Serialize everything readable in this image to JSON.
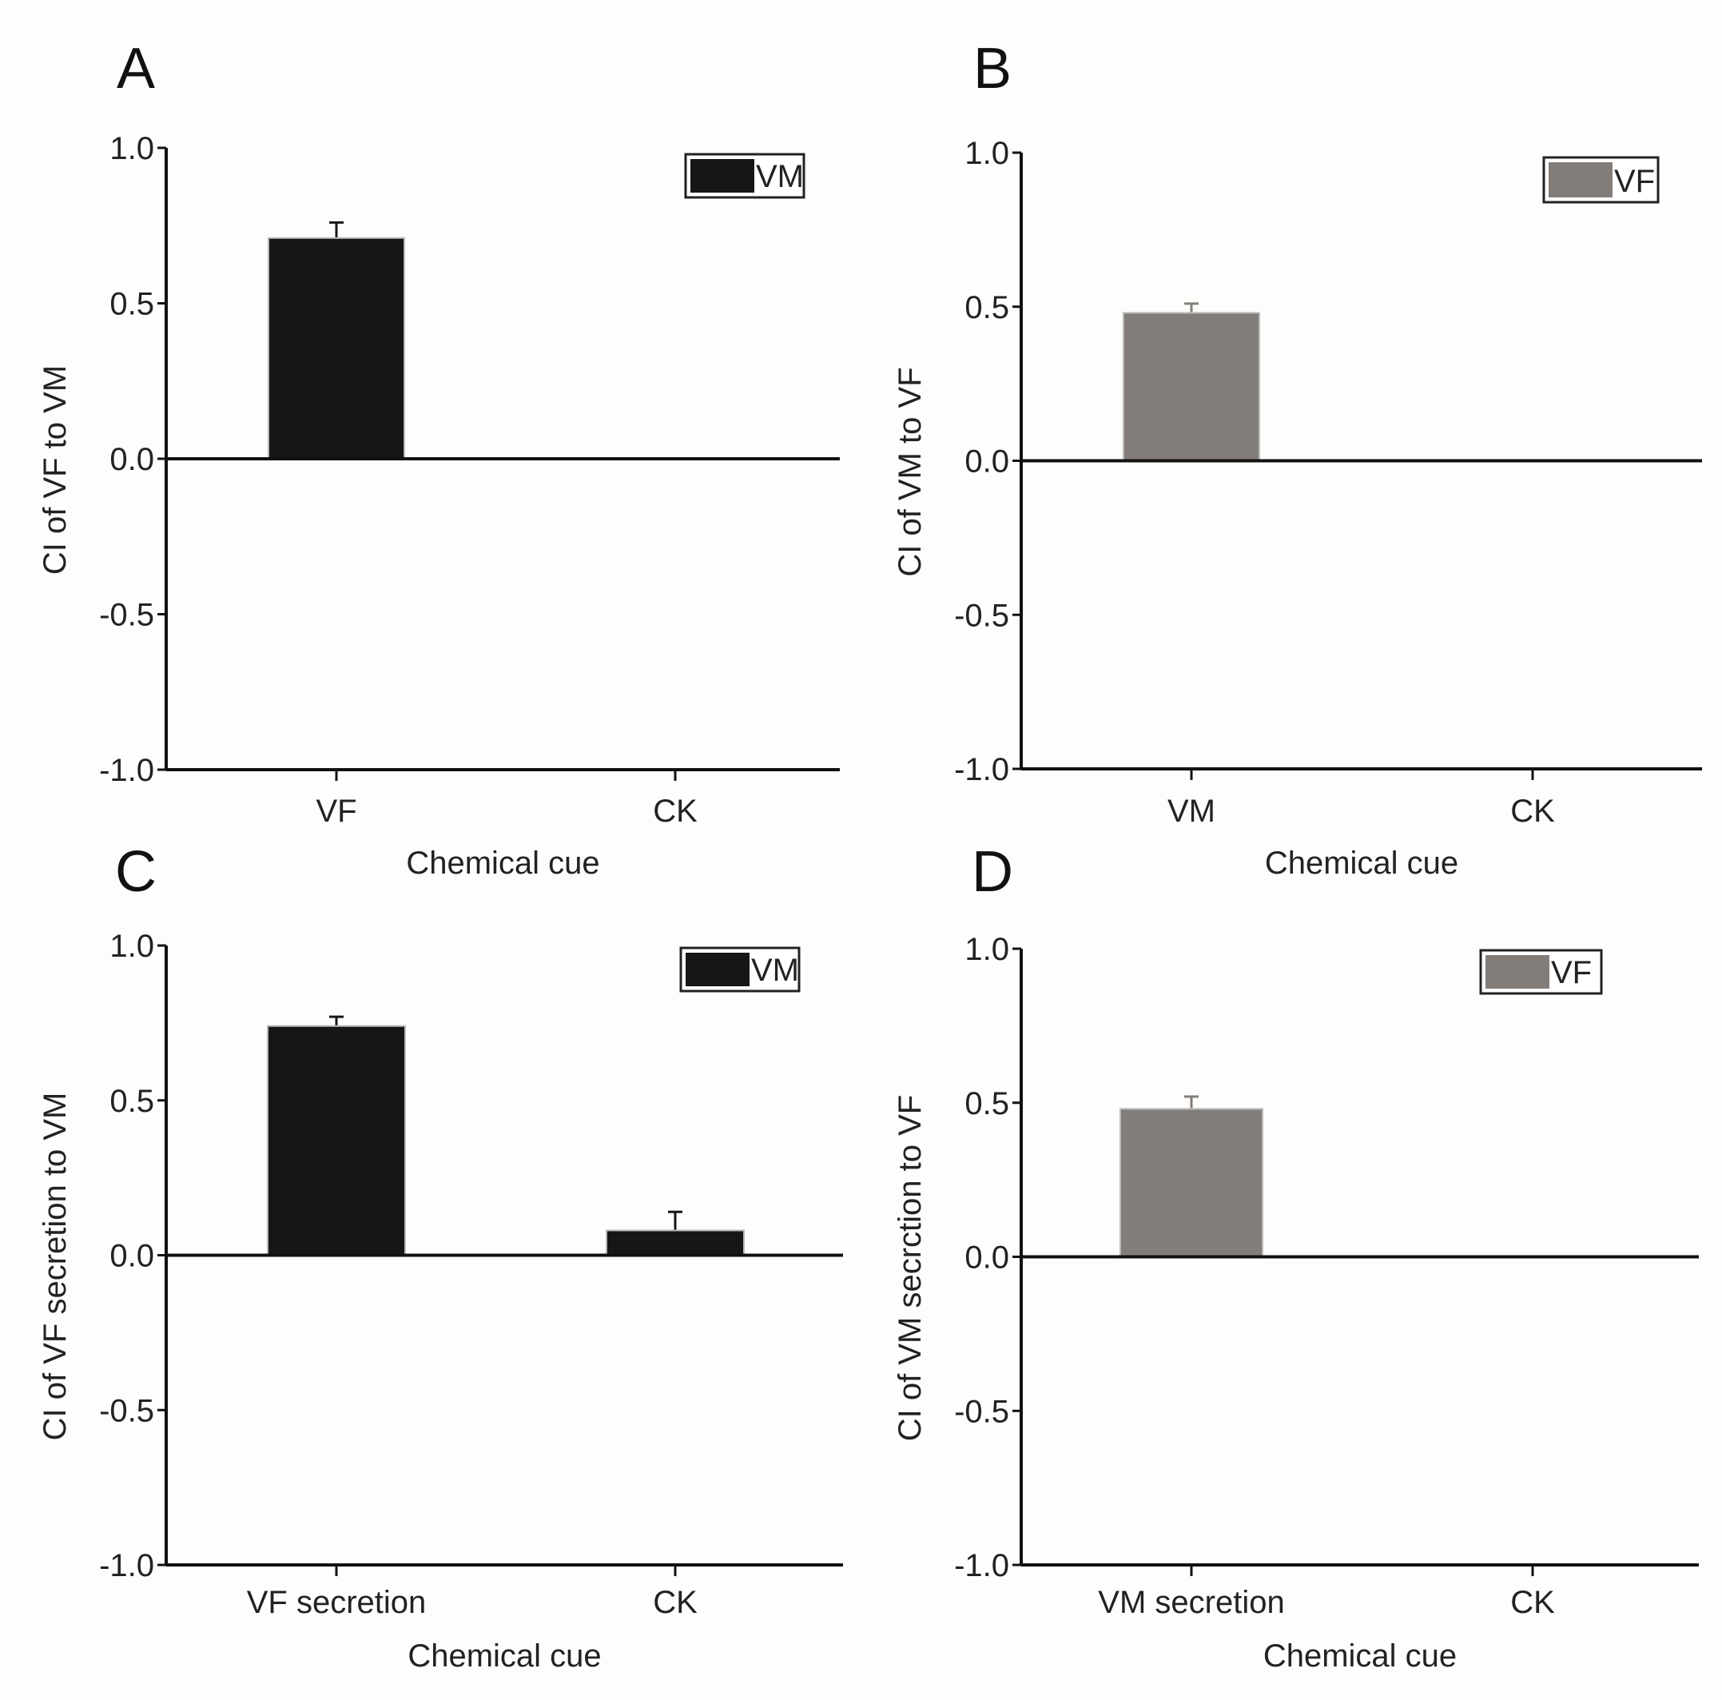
{
  "figure": {
    "colors": {
      "vm": "#161616",
      "vf": "#837d7a",
      "axis": "#111111"
    },
    "panels": [
      {
        "letter": "A",
        "chart_data": {
          "type": "bar",
          "categories": [
            "VF",
            "CK"
          ],
          "values": [
            0.71,
            0.0
          ],
          "errors": [
            0.05,
            0.0
          ],
          "ylabel": "CI of VF to VM",
          "xlabel": "Chemical cue",
          "ylim": [
            -1.0,
            1.0
          ],
          "yticks": [
            "1.0",
            "0.5",
            "0.0",
            "-0.5",
            "-1.0"
          ],
          "legend": {
            "label": "VM",
            "color": "#161616",
            "position": "top-right"
          }
        }
      },
      {
        "letter": "B",
        "chart_data": {
          "type": "bar",
          "categories": [
            "VM",
            "CK"
          ],
          "values": [
            0.48,
            0.0
          ],
          "errors": [
            0.03,
            0.0
          ],
          "ylabel": "CI of VM to VF",
          "xlabel": "Chemical cue",
          "ylim": [
            -1.0,
            1.0
          ],
          "yticks": [
            "1.0",
            "0.5",
            "0.0",
            "-0.5",
            "-1.0"
          ],
          "legend": {
            "label": "VF",
            "color": "#837d7a",
            "position": "top-right"
          }
        }
      },
      {
        "letter": "C",
        "chart_data": {
          "type": "bar",
          "categories": [
            "VF secretion",
            "CK"
          ],
          "values": [
            0.74,
            0.08
          ],
          "errors": [
            0.03,
            0.06
          ],
          "ylabel": "CI of VF secretion to VM",
          "xlabel": "Chemical cue",
          "ylim": [
            -1.0,
            1.0
          ],
          "yticks": [
            "1.0",
            "0.5",
            "0.0",
            "-0.5",
            "-1.0"
          ],
          "legend": {
            "label": "VM",
            "color": "#161616",
            "position": "top-right"
          }
        }
      },
      {
        "letter": "D",
        "chart_data": {
          "type": "bar",
          "categories": [
            "VM secretion",
            "CK"
          ],
          "values": [
            0.48,
            0.0
          ],
          "errors": [
            0.04,
            0.0
          ],
          "ylabel": "CI of VM secrction to VF",
          "xlabel": "Chemical cue",
          "ylim": [
            -1.0,
            1.0
          ],
          "yticks": [
            "1.0",
            "0.5",
            "0.0",
            "-0.5",
            "-1.0"
          ],
          "legend": {
            "label": "VF",
            "color": "#837d7a",
            "position": "top-right"
          }
        }
      }
    ]
  }
}
